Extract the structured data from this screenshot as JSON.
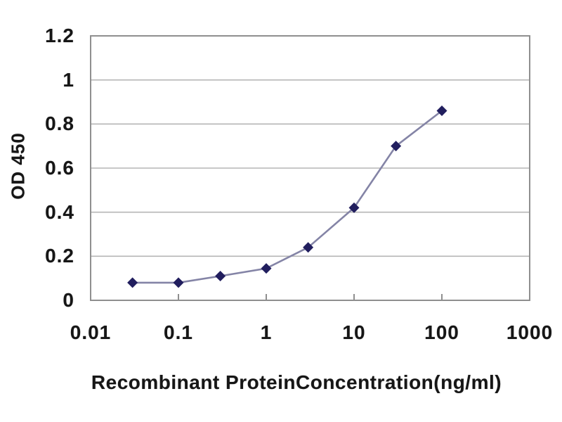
{
  "figure": {
    "background": "#ffffff"
  },
  "colors": {
    "gridline": "#b5b5b5",
    "axis_border": "#8f8f8f",
    "tick_mark": "#8f8f8f",
    "text": "#161616",
    "series_line": "#8484a6",
    "marker_fill": "#211e5e"
  },
  "chart_data": {
    "type": "line",
    "title": "",
    "xlabel": "Recombinant ProteinConcentration(ng/ml)",
    "ylabel": "OD 450",
    "x_scale": "log",
    "xlim": [
      0.01,
      1000
    ],
    "ylim": [
      0,
      1.2
    ],
    "x_ticks": [
      0.01,
      0.1,
      1,
      10,
      100,
      1000
    ],
    "x_tick_labels": [
      "0.01",
      "0.1",
      "1",
      "10",
      "100",
      "1000"
    ],
    "y_ticks": [
      0,
      0.2,
      0.4,
      0.6,
      0.8,
      1,
      1.2
    ],
    "y_tick_labels": [
      "0",
      "0.2",
      "0.4",
      "0.6",
      "0.8",
      "1",
      "1.2"
    ],
    "grid": "horizontal",
    "legend": "none",
    "series": [
      {
        "name": "OD450",
        "marker": "diamond",
        "x": [
          0.03,
          0.1,
          0.3,
          1,
          3,
          10,
          30,
          100
        ],
        "y": [
          0.08,
          0.08,
          0.11,
          0.145,
          0.24,
          0.42,
          0.7,
          0.86
        ]
      }
    ]
  }
}
